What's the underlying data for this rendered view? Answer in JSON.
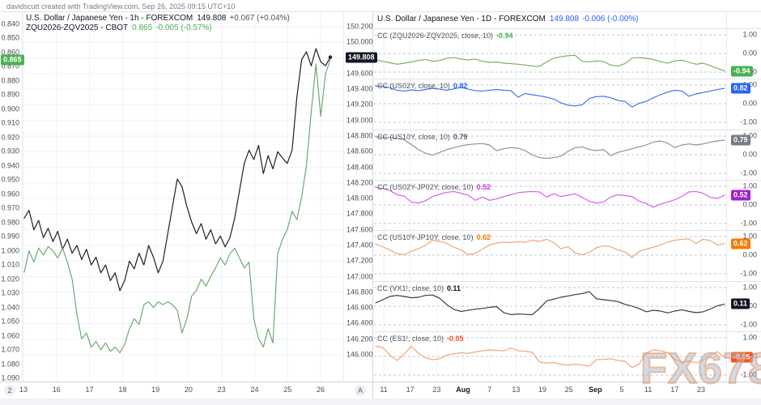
{
  "header": {
    "credit": "davidscutt created with TradingView.com, Sep 26, 2025 09:15 UTC+10"
  },
  "watermark": "FX678",
  "buttons": {
    "bar_count": "2",
    "auto_scale": "A"
  },
  "left_chart": {
    "legend1": {
      "title": "U.S. Dollar / Japanese Yen - 1h - FOREXCOM",
      "price": "149.808",
      "change": "+0.067 (+0.04%)"
    },
    "legend2": {
      "title": "ZQU2026-ZQV2025 - CBOT",
      "price": "0.865",
      "change": "-0.005 (-0.57%)"
    },
    "badges": {
      "spread": {
        "text": "0.865",
        "value": 0.865,
        "color": "#4caf50"
      },
      "price": {
        "text": "149.808",
        "value": 149.808,
        "color": "#131722"
      }
    }
  },
  "right_chart": {
    "legend": {
      "title": "U.S. Dollar / Japanese Yen - 1D - FOREXCOM",
      "price": "149.808",
      "change": "-0.006 (-0.00%)"
    },
    "pane_axis_ticks": [
      "1.00",
      "0.00",
      "-1.00"
    ]
  },
  "colors": {
    "background": "#ffffff",
    "grid": "#eef1f7",
    "dashed_grid": "#c2c5ce",
    "separator": "#e0e3eb",
    "axis_text": "#4a4e59",
    "usdjpy_line": "#1e2026",
    "spread_line": "#6fa873",
    "blue": "#2962ff",
    "gray": "#787b86",
    "magenta": "#c637e0",
    "orange": "#f57c00",
    "orange_red": "#f4511e",
    "green": "#4caf50"
  },
  "chart_data": [
    {
      "type": "line",
      "title": "U.S. Dollar / Japanese Yen 1h with ZQU2026-ZQV2025 (CBOT) overlay",
      "x": {
        "labels": [
          "13",
          "16",
          "17",
          "18",
          "19",
          "20",
          "23",
          "24",
          "25",
          "26"
        ],
        "unit": "day of September 2025, hourly bars"
      },
      "left_axis": {
        "inverted": true,
        "range": [
          0.84,
          1.09
        ],
        "ticks": [
          "0.840",
          "0.850",
          "0.860",
          "0.870",
          "0.880",
          "0.890",
          "0.900",
          "0.910",
          "0.920",
          "0.930",
          "0.940",
          "0.950",
          "0.960",
          "0.970",
          "0.980",
          "0.990",
          "1.000",
          "1.010",
          "1.020",
          "1.030",
          "1.040",
          "1.050",
          "1.060",
          "1.070",
          "1.080",
          "1.090"
        ]
      },
      "right_axis": {
        "range": [
          146.0,
          150.2
        ],
        "ticks": [
          "150.200",
          "150.000",
          "149.600",
          "149.400",
          "149.200",
          "149.000",
          "148.800",
          "148.600",
          "148.400",
          "148.200",
          "148.000",
          "147.800",
          "147.600",
          "147.400",
          "147.200",
          "147.000",
          "146.800",
          "146.600",
          "146.400",
          "146.200",
          "146.000"
        ]
      },
      "series": [
        {
          "name": "USDJPY",
          "axis": "right",
          "color": "#1e2026",
          "last": 149.808,
          "values": [
            147.75,
            147.85,
            147.6,
            147.72,
            147.5,
            147.62,
            147.45,
            147.58,
            147.35,
            147.48,
            147.3,
            147.4,
            147.22,
            147.35,
            147.15,
            147.25,
            147.05,
            147.15,
            146.95,
            147.05,
            146.82,
            146.95,
            147.2,
            147.1,
            147.3,
            147.15,
            147.4,
            147.25,
            147.05,
            147.2,
            147.55,
            147.9,
            148.25,
            148.15,
            147.9,
            147.7,
            147.55,
            147.68,
            147.48,
            147.6,
            147.42,
            147.52,
            147.38,
            147.5,
            147.75,
            148.1,
            148.45,
            148.62,
            148.5,
            148.68,
            148.32,
            148.55,
            148.38,
            148.6,
            148.52,
            148.45,
            148.62,
            149.3,
            149.78,
            149.88,
            149.7,
            149.92,
            149.75,
            149.7,
            149.81
          ]
        },
        {
          "name": "ZQU2026-ZQV2025",
          "axis": "left",
          "color": "#6fa873",
          "last": 0.865,
          "values": [
            1.015,
            1.0,
            1.008,
            0.998,
            1.003,
            0.997,
            1.0,
            1.005,
            0.998,
            1.008,
            1.02,
            1.045,
            1.062,
            1.058,
            1.068,
            1.064,
            1.07,
            1.065,
            1.071,
            1.068,
            1.072,
            1.066,
            1.055,
            1.048,
            1.052,
            1.038,
            1.036,
            1.04,
            1.036,
            1.038,
            1.036,
            1.038,
            1.042,
            1.058,
            1.048,
            1.032,
            1.028,
            1.02,
            1.025,
            1.018,
            1.012,
            1.005,
            1.01,
            1.002,
            0.998,
            1.005,
            1.012,
            1.008,
            1.048,
            1.062,
            1.068,
            1.055,
            1.065,
            1.002,
            0.992,
            0.985,
            0.972,
            0.978,
            0.962,
            0.94,
            0.902,
            0.868,
            0.905,
            0.875,
            0.865
          ]
        }
      ]
    },
    {
      "type": "line",
      "title": "USDJPY 1D rolling 10-day correlation coefficients",
      "x": {
        "labels": [
          "11",
          "17",
          "23",
          "Aug",
          "7",
          "13",
          "19",
          "25",
          "Sep",
          "5",
          "11",
          "17",
          "23"
        ],
        "unit": "Jul-Sep 2025 daily"
      },
      "ylim": [
        -1,
        1
      ],
      "panes": [
        {
          "label": "CC (ZQU2026-ZQV2025, close, 10)",
          "value": -0.94,
          "value_text": "-0.94",
          "line_color": "#7cab62",
          "value_color": "#4caf50",
          "badge_color": "#4caf50",
          "values": [
            -0.35,
            -0.42,
            -0.5,
            -0.58,
            -0.52,
            -0.45,
            -0.38,
            -0.32,
            -0.42,
            -0.38,
            -0.25,
            -0.22,
            -0.3,
            -0.35,
            -0.3,
            -0.42,
            -0.48,
            -0.45,
            -0.52,
            -0.55,
            -0.58,
            -0.62,
            -0.68,
            -0.7,
            -0.45,
            -0.25,
            -0.18,
            -0.12,
            -0.1,
            -0.42,
            -0.45,
            -0.4,
            -0.44,
            -0.62,
            -0.68,
            -0.55,
            -0.25,
            -0.22,
            -0.26,
            -0.32,
            -0.44,
            -0.52,
            -0.4,
            -0.36,
            -0.48,
            -0.58,
            -0.52,
            -0.65,
            -0.8,
            -0.94
          ]
        },
        {
          "label": "CC (US02Y, close, 10)",
          "value": 0.82,
          "value_text": "0.82",
          "line_color": "#3d6ef5",
          "value_color": "#2962ff",
          "badge_color": "#2962ff",
          "values": [
            0.95,
            0.93,
            0.85,
            0.72,
            0.68,
            0.74,
            0.7,
            0.76,
            0.82,
            0.78,
            0.72,
            0.8,
            0.88,
            0.78,
            0.7,
            0.68,
            0.72,
            0.76,
            0.72,
            0.7,
            0.35,
            0.55,
            0.48,
            0.42,
            0.35,
            0.25,
            0.05,
            -0.08,
            -0.12,
            -0.06,
            0.28,
            0.38,
            0.4,
            0.32,
            0.18,
            0.12,
            -0.18,
            0.02,
            0.12,
            0.32,
            0.48,
            0.62,
            0.72,
            0.68,
            0.4,
            0.52,
            0.6,
            0.68,
            0.76,
            0.82
          ]
        },
        {
          "label": "CC (US10Y, close, 10)",
          "value": 0.79,
          "value_text": "0.79",
          "line_color": "#8c8f98",
          "value_color": "#50535e",
          "badge_color": "#787b86",
          "values": [
            0.96,
            0.94,
            0.92,
            0.88,
            0.8,
            0.55,
            0.28,
            0.08,
            -0.02,
            0.12,
            0.28,
            0.38,
            0.48,
            0.54,
            0.58,
            0.6,
            0.52,
            0.22,
            0.32,
            0.38,
            0.35,
            0.22,
            -0.02,
            -0.15,
            -0.2,
            -0.16,
            -0.08,
            0.18,
            0.38,
            0.42,
            0.28,
            0.22,
            0.28,
            -0.05,
            0.12,
            0.22,
            0.32,
            0.42,
            0.52,
            0.68,
            0.74,
            0.62,
            0.38,
            0.52,
            0.58,
            0.52,
            0.58,
            0.68,
            0.74,
            0.79
          ]
        },
        {
          "label": "CC (US02Y-JP02Y, close, 10)",
          "value": 0.52,
          "value_text": "0.52",
          "line_color": "#d45ce6",
          "value_color": "#c637e0",
          "badge_color": "#a020d0",
          "values": [
            0.95,
            0.88,
            0.78,
            0.55,
            0.48,
            0.15,
            0.1,
            0.22,
            0.45,
            0.58,
            0.68,
            0.72,
            0.62,
            0.52,
            0.25,
            0.42,
            0.25,
            0.32,
            0.45,
            0.55,
            0.65,
            0.7,
            0.72,
            0.7,
            0.42,
            0.6,
            0.45,
            0.52,
            0.6,
            0.4,
            0.2,
            0.1,
            0.16,
            0.42,
            0.55,
            0.5,
            0.45,
            0.2,
            0.08,
            -0.12,
            0.05,
            0.15,
            0.28,
            0.45,
            0.7,
            0.72,
            0.62,
            0.4,
            0.35,
            0.52
          ]
        },
        {
          "label": "CC (US10Y-JP10Y, close, 10)",
          "value": 0.62,
          "value_text": "0.62",
          "line_color": "#f2a170",
          "value_color": "#f57c00",
          "badge_color": "#f57c00",
          "values": [
            0.6,
            0.45,
            0.28,
            0.08,
            0.02,
            0.2,
            0.35,
            0.52,
            0.8,
            0.74,
            0.62,
            0.42,
            0.28,
            0.02,
            0.1,
            0.32,
            0.55,
            0.65,
            0.7,
            0.68,
            0.72,
            0.7,
            0.8,
            0.74,
            0.85,
            0.68,
            0.35,
            0.45,
            0.12,
            0.02,
            0.15,
            0.4,
            0.5,
            0.45,
            0.28,
            0.18,
            -0.12,
            0.2,
            0.32,
            0.42,
            0.55,
            0.7,
            0.8,
            0.85,
            0.88,
            0.62,
            0.85,
            0.78,
            0.55,
            0.62
          ]
        },
        {
          "label": "CC (VX1!, close, 10)",
          "value": 0.11,
          "value_text": "0.11",
          "line_color": "#33363e",
          "value_color": "#131722",
          "badge_color": "#131722",
          "values": [
            0.18,
            0.35,
            0.52,
            0.58,
            0.52,
            0.45,
            0.48,
            0.58,
            0.6,
            0.42,
            0.08,
            -0.18,
            -0.28,
            -0.22,
            -0.16,
            -0.12,
            -0.06,
            -0.02,
            -0.35,
            -0.45,
            -0.42,
            -0.44,
            -0.46,
            -0.12,
            0.28,
            0.38,
            0.48,
            0.55,
            0.62,
            0.68,
            0.78,
            0.4,
            0.35,
            0.3,
            0.25,
            0.1,
            0.0,
            -0.12,
            -0.3,
            -0.22,
            -0.26,
            -0.36,
            -0.26,
            -0.2,
            -0.28,
            -0.35,
            -0.3,
            -0.15,
            0.02,
            0.11
          ]
        },
        {
          "label": "CC (ES1!, close, 10)",
          "value": -0.05,
          "value_text": "-0.05",
          "line_color": "#f2a170",
          "value_color": "#f4511e",
          "badge_color": "#f4511e",
          "values": [
            0.55,
            0.48,
            0.08,
            -0.22,
            0.12,
            0.55,
            0.18,
            -0.08,
            -0.18,
            -0.12,
            0.08,
            0.14,
            0.2,
            0.16,
            0.24,
            0.3,
            0.35,
            0.32,
            0.3,
            0.45,
            0.3,
            0.28,
            0.22,
            -0.3,
            -0.36,
            -0.32,
            -0.42,
            -0.46,
            -0.42,
            -0.46,
            -0.52,
            -0.18,
            -0.16,
            -0.12,
            -0.22,
            -0.26,
            -0.6,
            -0.42,
            0.18,
            0.35,
            0.3,
            0.2,
            -0.15,
            -0.3,
            -0.25,
            -0.35,
            -0.2,
            0.1,
            0.25,
            -0.05
          ]
        }
      ]
    }
  ]
}
